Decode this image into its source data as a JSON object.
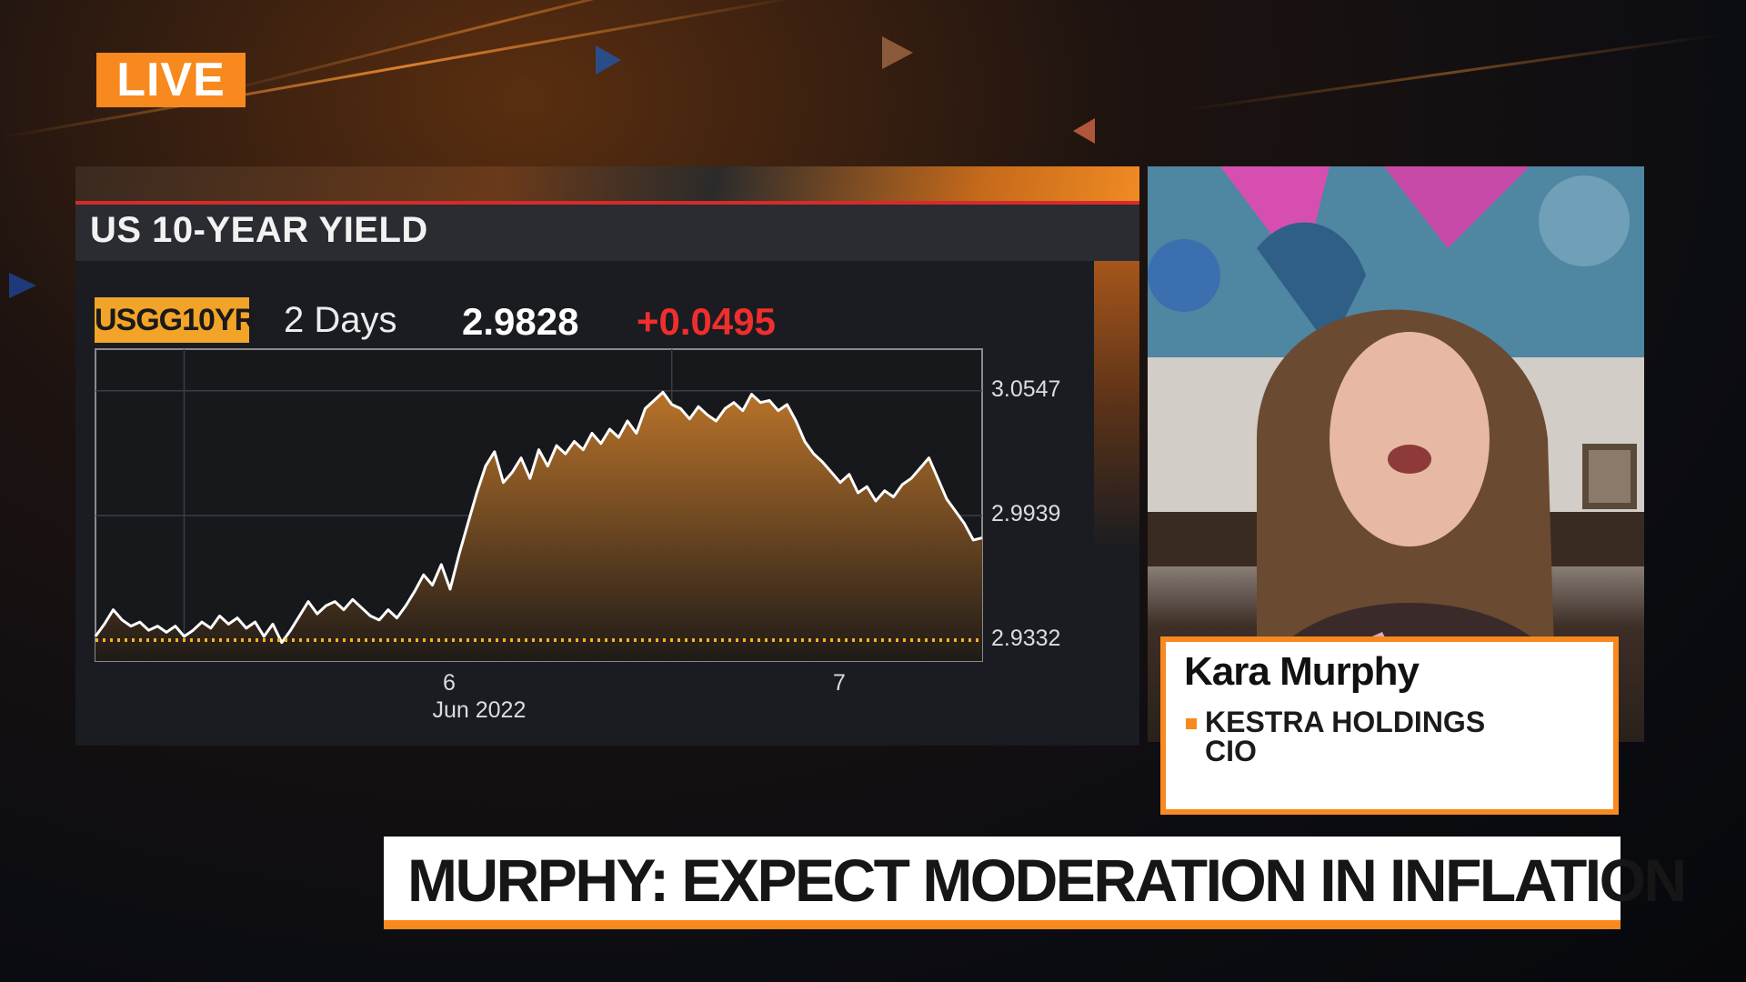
{
  "live_badge": "LIVE",
  "chart_panel": {
    "title": "US 10-YEAR YIELD",
    "ticker": "USGG10YR",
    "period": "2 Days",
    "last_value": "2.9828",
    "change": "+0.0495"
  },
  "chart_data": {
    "type": "area",
    "title": "US 10-YEAR YIELD",
    "xlabel": "Jun 2022",
    "ylabel": "",
    "x_ticks": [
      "6",
      "7"
    ],
    "y_ticks": [
      "3.0547",
      "2.9939",
      "2.9332"
    ],
    "ylim": [
      2.923,
      3.075
    ],
    "xlim": [
      0,
      100
    ],
    "reference_line": 2.9332,
    "grid": true,
    "series": [
      {
        "color": "#ffffff",
        "fill_top": "#b9732a",
        "fill_bottom": "#1f1b18",
        "x": [
          0,
          1,
          2,
          3,
          4,
          5,
          6,
          7,
          8,
          9,
          10,
          11,
          12,
          13,
          14,
          15,
          16,
          17,
          18,
          19,
          20,
          21,
          22,
          23,
          24,
          25,
          26,
          27,
          28,
          29,
          30,
          31,
          32,
          33,
          34,
          35,
          36,
          37,
          38,
          39,
          40,
          41,
          42,
          43,
          44,
          45,
          46,
          47,
          48,
          49,
          50,
          51,
          52,
          53,
          54,
          55,
          56,
          57,
          58,
          59,
          60,
          61,
          62,
          63,
          64,
          65,
          66,
          67,
          68,
          69,
          70,
          71,
          72,
          73,
          74,
          75,
          76,
          77,
          78,
          79,
          80,
          81,
          82,
          83,
          84,
          85,
          86,
          87,
          88,
          89,
          90,
          91,
          92,
          93,
          94,
          95,
          96,
          97,
          98,
          99,
          100
        ],
        "values": [
          2.935,
          2.941,
          2.948,
          2.943,
          2.94,
          2.942,
          2.938,
          2.94,
          2.937,
          2.94,
          2.935,
          2.938,
          2.942,
          2.939,
          2.945,
          2.941,
          2.944,
          2.939,
          2.942,
          2.935,
          2.941,
          2.932,
          2.938,
          2.945,
          2.952,
          2.946,
          2.95,
          2.952,
          2.948,
          2.953,
          2.949,
          2.945,
          2.943,
          2.948,
          2.944,
          2.95,
          2.957,
          2.965,
          2.96,
          2.97,
          2.958,
          2.975,
          2.99,
          3.005,
          3.018,
          3.025,
          3.01,
          3.015,
          3.022,
          3.012,
          3.026,
          3.018,
          3.028,
          3.024,
          3.03,
          3.026,
          3.034,
          3.029,
          3.036,
          3.032,
          3.04,
          3.034,
          3.046,
          3.05,
          3.054,
          3.048,
          3.046,
          3.041,
          3.047,
          3.043,
          3.04,
          3.046,
          3.049,
          3.045,
          3.053,
          3.049,
          3.05,
          3.045,
          3.048,
          3.04,
          3.03,
          3.024,
          3.02,
          3.015,
          3.01,
          3.014,
          3.005,
          3.008,
          3.001,
          3.006,
          3.003,
          3.009,
          3.012,
          3.017,
          3.022,
          3.012,
          3.002,
          2.996,
          2.99,
          2.982,
          2.983
        ]
      }
    ]
  },
  "guest": {
    "name": "Kara Murphy",
    "company": "KESTRA HOLDINGS",
    "role": "CIO"
  },
  "headline": "MURPHY: EXPECT MODERATION IN INFLATION"
}
